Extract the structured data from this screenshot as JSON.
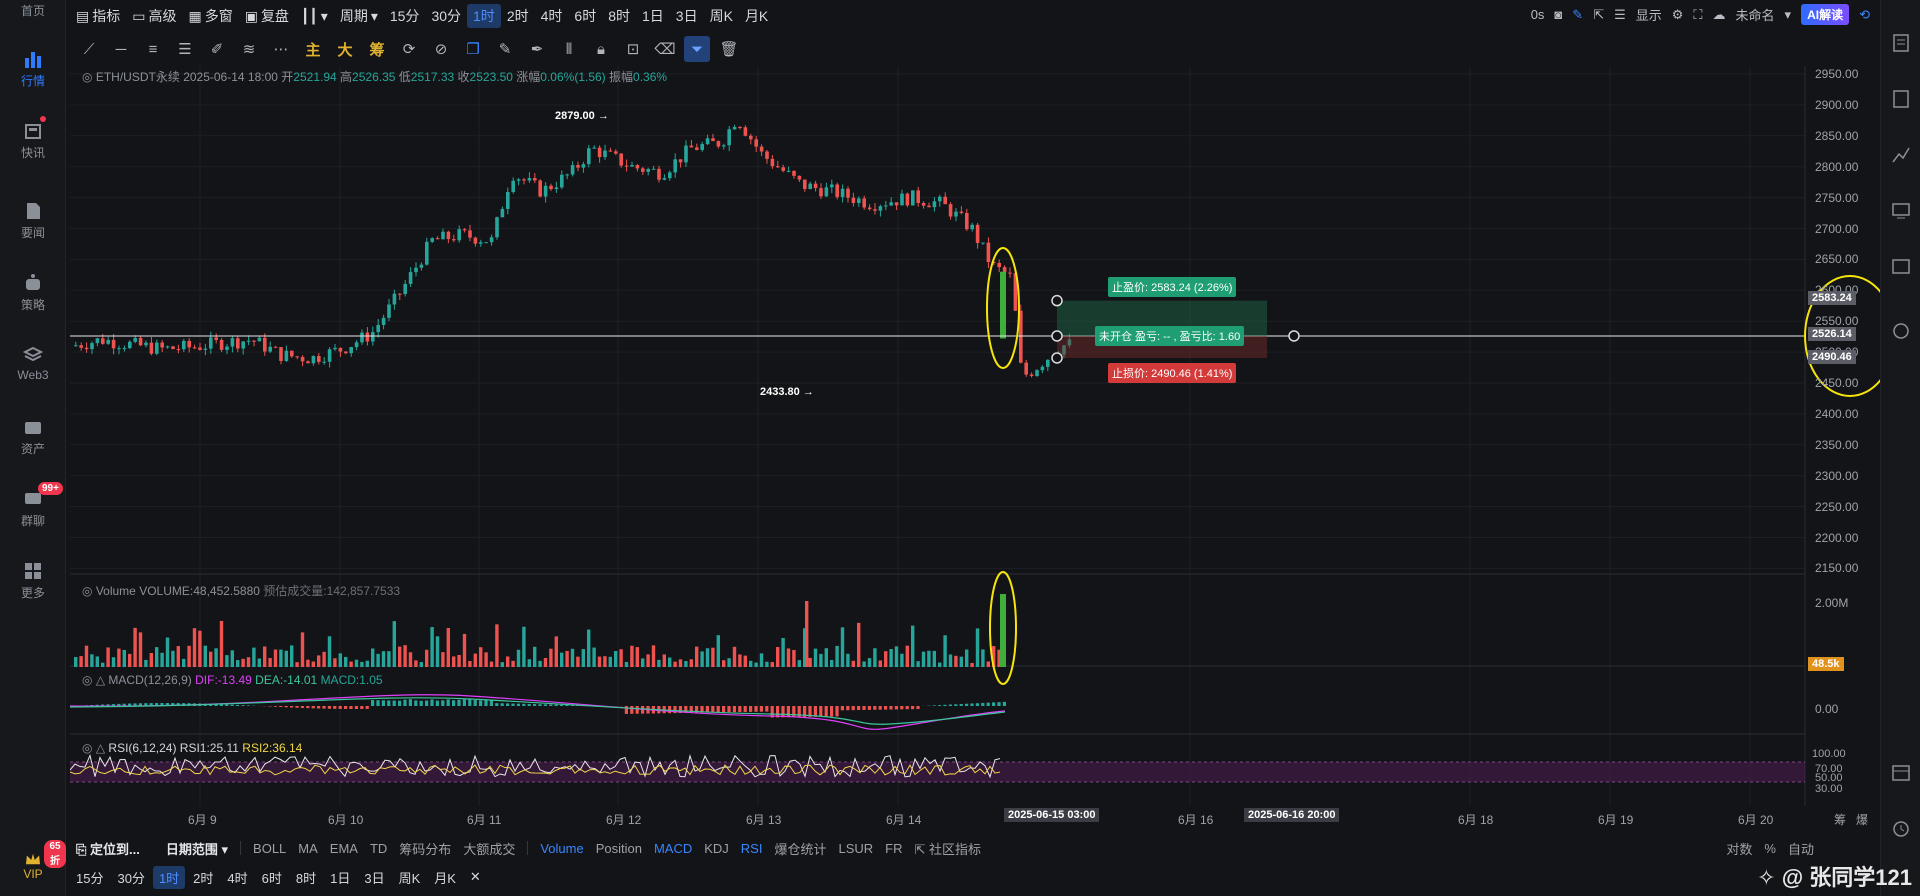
{
  "nav": {
    "items": [
      {
        "label": "首页"
      },
      {
        "label": "行情"
      },
      {
        "label": "快讯"
      },
      {
        "label": "要闻"
      },
      {
        "label": "策略"
      },
      {
        "label": "Web3"
      },
      {
        "label": "资产"
      },
      {
        "label": "群聊"
      },
      {
        "label": "更多"
      }
    ],
    "group_badge": "99+",
    "vip_label": "VIP",
    "vip_badge": "65折"
  },
  "topbar": {
    "indicator": "指标",
    "advanced": "高级",
    "multi_window": "多窗",
    "replay": "复盘",
    "period": "周期",
    "timeframes": [
      "15分",
      "30分",
      "1时",
      "2时",
      "4时",
      "6时",
      "8时",
      "1日",
      "3日",
      "周K",
      "月K"
    ],
    "active_timeframe": "1时",
    "right": {
      "seconds": "0s",
      "display": "显示",
      "unnamed": "未命名",
      "ai": "AI解读"
    }
  },
  "drawbar": {
    "main": "主",
    "big": "大",
    "chips": "筹"
  },
  "legend": {
    "symbol": "ETH/USDT永续",
    "datetime": "2025-06-14 18:00",
    "open_label": "开",
    "open": "2521.94",
    "high_label": "高",
    "high": "2526.35",
    "low_label": "低",
    "low": "2517.33",
    "close_label": "收",
    "close": "2523.50",
    "change_label": "涨幅",
    "change": "0.06%(1.56)",
    "amp_label": "振幅",
    "amp": "0.36%"
  },
  "volume_legend": {
    "name": "Volume",
    "vol": "VOLUME:48,452.5880",
    "est": "预估成交量:142,857.7533"
  },
  "macd_legend": {
    "name": "MACD(12,26,9)",
    "dif": "DIF:-13.49",
    "dea": "DEA:-14.01",
    "macd": "MACD:1.05"
  },
  "rsi_legend": {
    "name": "RSI(6,12,24)",
    "rsi1": "RSI1:25.11",
    "rsi2": "RSI2:36.14"
  },
  "price_axis": [
    "2950.00",
    "2900.00",
    "2850.00",
    "2800.00",
    "2750.00",
    "2700.00",
    "2650.00",
    "2600.00",
    "2550.00",
    "2500.00",
    "2450.00",
    "2400.00",
    "2350.00",
    "2300.00",
    "2250.00",
    "2200.00",
    "2150.00"
  ],
  "price_tags": {
    "tp": "2583.24",
    "cur": "2526.14",
    "sl": "2490.46",
    "vol": "48.5k",
    "vol_axis": "2.00M",
    "macd_zero": "0.00",
    "rsi": [
      "100.00",
      "70.00",
      "50.00",
      "30.00"
    ]
  },
  "annotations": {
    "high": "2879.00 →",
    "low": "2433.80 →"
  },
  "position_tool": {
    "tp_label": "止盈价: 2583.24 (2.26%)",
    "mid_label": "未开仓 盈亏: -- , 盈亏比: 1.60",
    "sl_label": "止损价: 2490.46 (1.41%)"
  },
  "time_axis": [
    "6月 9",
    "6月 10",
    "6月 11",
    "6月 12",
    "6月 13",
    "6月 14",
    "6月 16",
    "6月 18",
    "6月 19",
    "6月 20"
  ],
  "time_tags": [
    "2025-06-15 03:00",
    "2025-06-16 20:00"
  ],
  "axis_corner": [
    "筹",
    "爆"
  ],
  "bottom1": {
    "locate": "定位到...",
    "range": "日期范围",
    "indicators": [
      "BOLL",
      "MA",
      "EMA",
      "TD",
      "筹码分布",
      "大额成交",
      "Volume",
      "Position",
      "MACD",
      "KDJ",
      "RSI",
      "爆仓统计",
      "LSUR",
      "FR"
    ],
    "active": [
      "Volume",
      "MACD",
      "RSI"
    ],
    "community": "社区指标",
    "right": [
      "对数",
      "%",
      "自动"
    ]
  },
  "bottom2": {
    "timeframes": [
      "15分",
      "30分",
      "1时",
      "2时",
      "4时",
      "6时",
      "8时",
      "1日",
      "3日",
      "周K",
      "月K"
    ],
    "active": "1时",
    "close": "✕"
  },
  "watermark": "✧ @ 张同学121",
  "colors": {
    "up": "#26a69a",
    "down": "#ef5350",
    "accent": "#2f7bff",
    "highlight": "#f5e50a"
  }
}
